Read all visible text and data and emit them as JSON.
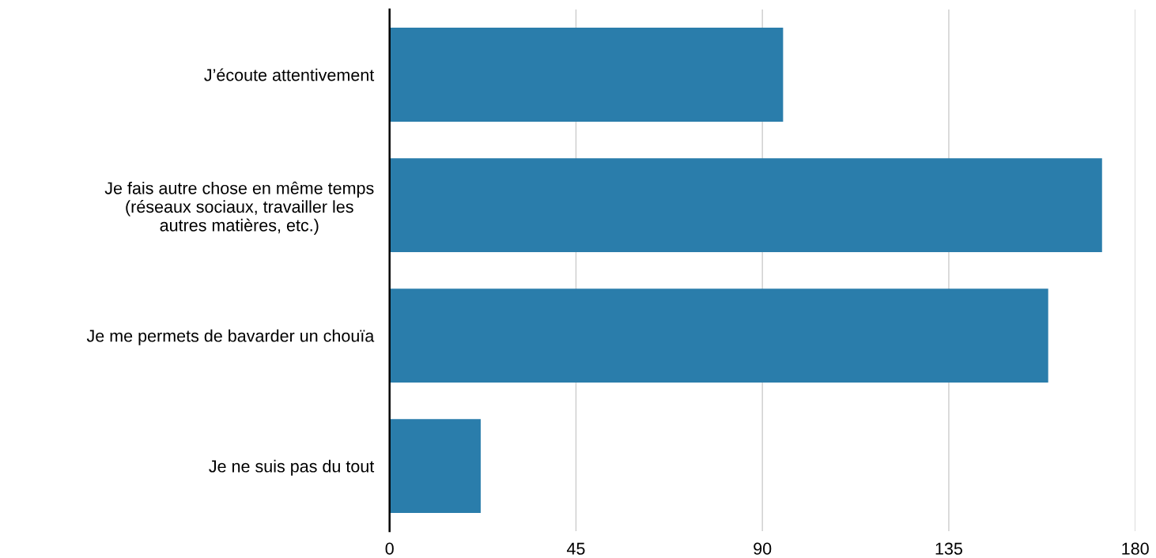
{
  "chart_data": {
    "type": "bar",
    "orientation": "horizontal",
    "categories": [
      "J’écoute attentivement",
      "Je fais autre chose en même temps\n(réseaux sociaux, travailler les\nautres matières, etc.)",
      "Je me permets de bavarder un chouïa",
      "Je ne suis pas du tout"
    ],
    "values": [
      95,
      172,
      159,
      22
    ],
    "color": "#2a7dab",
    "xlim": [
      0,
      180
    ],
    "xticks": [
      0,
      45,
      90,
      135,
      180
    ],
    "grid": "x"
  }
}
